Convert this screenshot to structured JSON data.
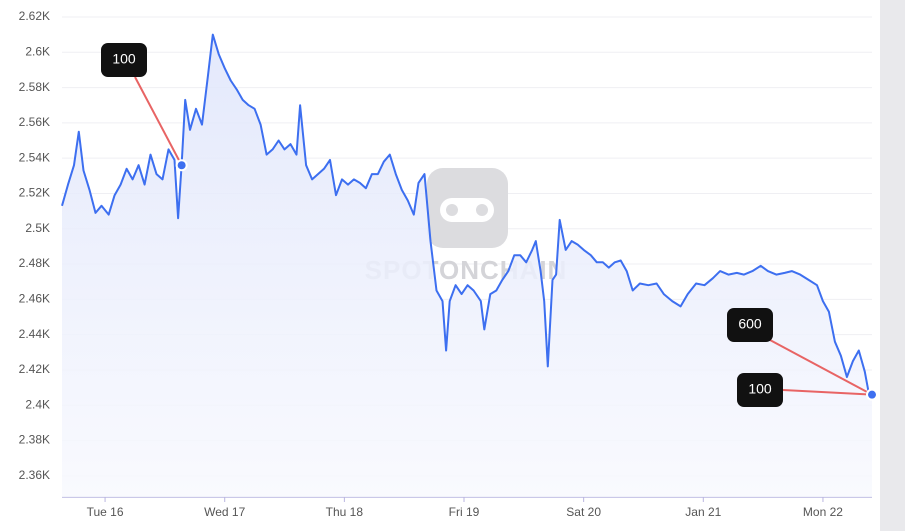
{
  "chart_data": {
    "type": "line",
    "color": "#3d6ff0",
    "watermark": "SPOTONCHAIN",
    "grid": true,
    "ylim": [
      2348,
      2620
    ],
    "yticks": [
      {
        "value": 2360,
        "label": "2.36K"
      },
      {
        "value": 2380,
        "label": "2.38K"
      },
      {
        "value": 2400,
        "label": "2.4K"
      },
      {
        "value": 2420,
        "label": "2.42K"
      },
      {
        "value": 2440,
        "label": "2.44K"
      },
      {
        "value": 2460,
        "label": "2.46K"
      },
      {
        "value": 2480,
        "label": "2.48K"
      },
      {
        "value": 2500,
        "label": "2.5K"
      },
      {
        "value": 2520,
        "label": "2.52K"
      },
      {
        "value": 2540,
        "label": "2.54K"
      },
      {
        "value": 2560,
        "label": "2.56K"
      },
      {
        "value": 2580,
        "label": "2.58K"
      },
      {
        "value": 2600,
        "label": "2.6K"
      },
      {
        "value": 2620,
        "label": "2.62K"
      }
    ],
    "xlim": [
      15.64,
      22.41
    ],
    "xticks": [
      {
        "value": 16,
        "label": "Tue 16"
      },
      {
        "value": 17,
        "label": "Wed 17"
      },
      {
        "value": 18,
        "label": "Thu 18"
      },
      {
        "value": 19,
        "label": "Fri 19"
      },
      {
        "value": 20,
        "label": "Sat 20"
      },
      {
        "value": 21,
        "label": "Jan 21"
      },
      {
        "value": 22,
        "label": "Mon 22"
      }
    ],
    "x": [
      15.64,
      15.69,
      15.74,
      15.78,
      15.82,
      15.87,
      15.92,
      15.97,
      16.03,
      16.08,
      16.13,
      16.18,
      16.23,
      16.28,
      16.33,
      16.38,
      16.43,
      16.48,
      16.53,
      16.58,
      16.61,
      16.64,
      16.67,
      16.71,
      16.76,
      16.81,
      16.86,
      16.9,
      16.95,
      17.0,
      17.05,
      17.1,
      17.15,
      17.2,
      17.25,
      17.3,
      17.35,
      17.4,
      17.45,
      17.5,
      17.55,
      17.6,
      17.63,
      17.68,
      17.73,
      17.78,
      17.83,
      17.88,
      17.93,
      17.98,
      18.03,
      18.08,
      18.13,
      18.18,
      18.23,
      18.28,
      18.33,
      18.38,
      18.43,
      18.48,
      18.53,
      18.58,
      18.62,
      18.67,
      18.72,
      18.77,
      18.82,
      18.85,
      18.88,
      18.93,
      18.98,
      19.03,
      19.08,
      19.14,
      19.17,
      19.22,
      19.27,
      19.32,
      19.37,
      19.42,
      19.47,
      19.52,
      19.57,
      19.6,
      19.64,
      19.67,
      19.7,
      19.74,
      19.77,
      19.8,
      19.85,
      19.9,
      19.95,
      20.0,
      20.06,
      20.11,
      20.16,
      20.21,
      20.26,
      20.31,
      20.36,
      20.41,
      20.47,
      20.54,
      20.61,
      20.67,
      20.74,
      20.81,
      20.87,
      20.94,
      21.01,
      21.08,
      21.14,
      21.21,
      21.28,
      21.34,
      21.41,
      21.48,
      21.54,
      21.61,
      21.68,
      21.74,
      21.81,
      21.88,
      21.95,
      22.0,
      22.05,
      22.1,
      22.15,
      22.2,
      22.25,
      22.3,
      22.35,
      22.38,
      22.41
    ],
    "values": [
      2513,
      2525,
      2536,
      2555,
      2533,
      2522,
      2509,
      2513,
      2508,
      2519,
      2525,
      2534,
      2528,
      2536,
      2525,
      2542,
      2531,
      2528,
      2545,
      2539,
      2506,
      2536,
      2573,
      2556,
      2568,
      2559,
      2587,
      2610,
      2599,
      2591,
      2584,
      2579,
      2573,
      2570,
      2568,
      2559,
      2542,
      2545,
      2550,
      2545,
      2548,
      2542,
      2570,
      2536,
      2528,
      2531,
      2534,
      2539,
      2519,
      2528,
      2525,
      2528,
      2526,
      2523,
      2531,
      2531,
      2538,
      2542,
      2531,
      2522,
      2516,
      2508,
      2526,
      2531,
      2493,
      2465,
      2459,
      2431,
      2459,
      2468,
      2463,
      2468,
      2465,
      2459,
      2443,
      2463,
      2465,
      2471,
      2476,
      2485,
      2485,
      2481,
      2488,
      2493,
      2476,
      2459,
      2422,
      2471,
      2474,
      2505,
      2488,
      2493,
      2491,
      2488,
      2485,
      2481,
      2481,
      2478,
      2481,
      2482,
      2476,
      2465,
      2469,
      2468,
      2469,
      2463,
      2459,
      2456,
      2463,
      2469,
      2468,
      2472,
      2476,
      2474,
      2475,
      2474,
      2476,
      2479,
      2476,
      2474,
      2475,
      2476,
      2474,
      2471,
      2468,
      2459,
      2453,
      2436,
      2428,
      2416,
      2425,
      2431,
      2419,
      2408,
      2405
    ],
    "annotations": [
      {
        "text": "100",
        "x": 16.64,
        "y": 2536
      },
      {
        "text": "600",
        "x": 22.41,
        "y": 2406
      },
      {
        "text": "100",
        "x": 22.41,
        "y": 2406
      }
    ]
  }
}
